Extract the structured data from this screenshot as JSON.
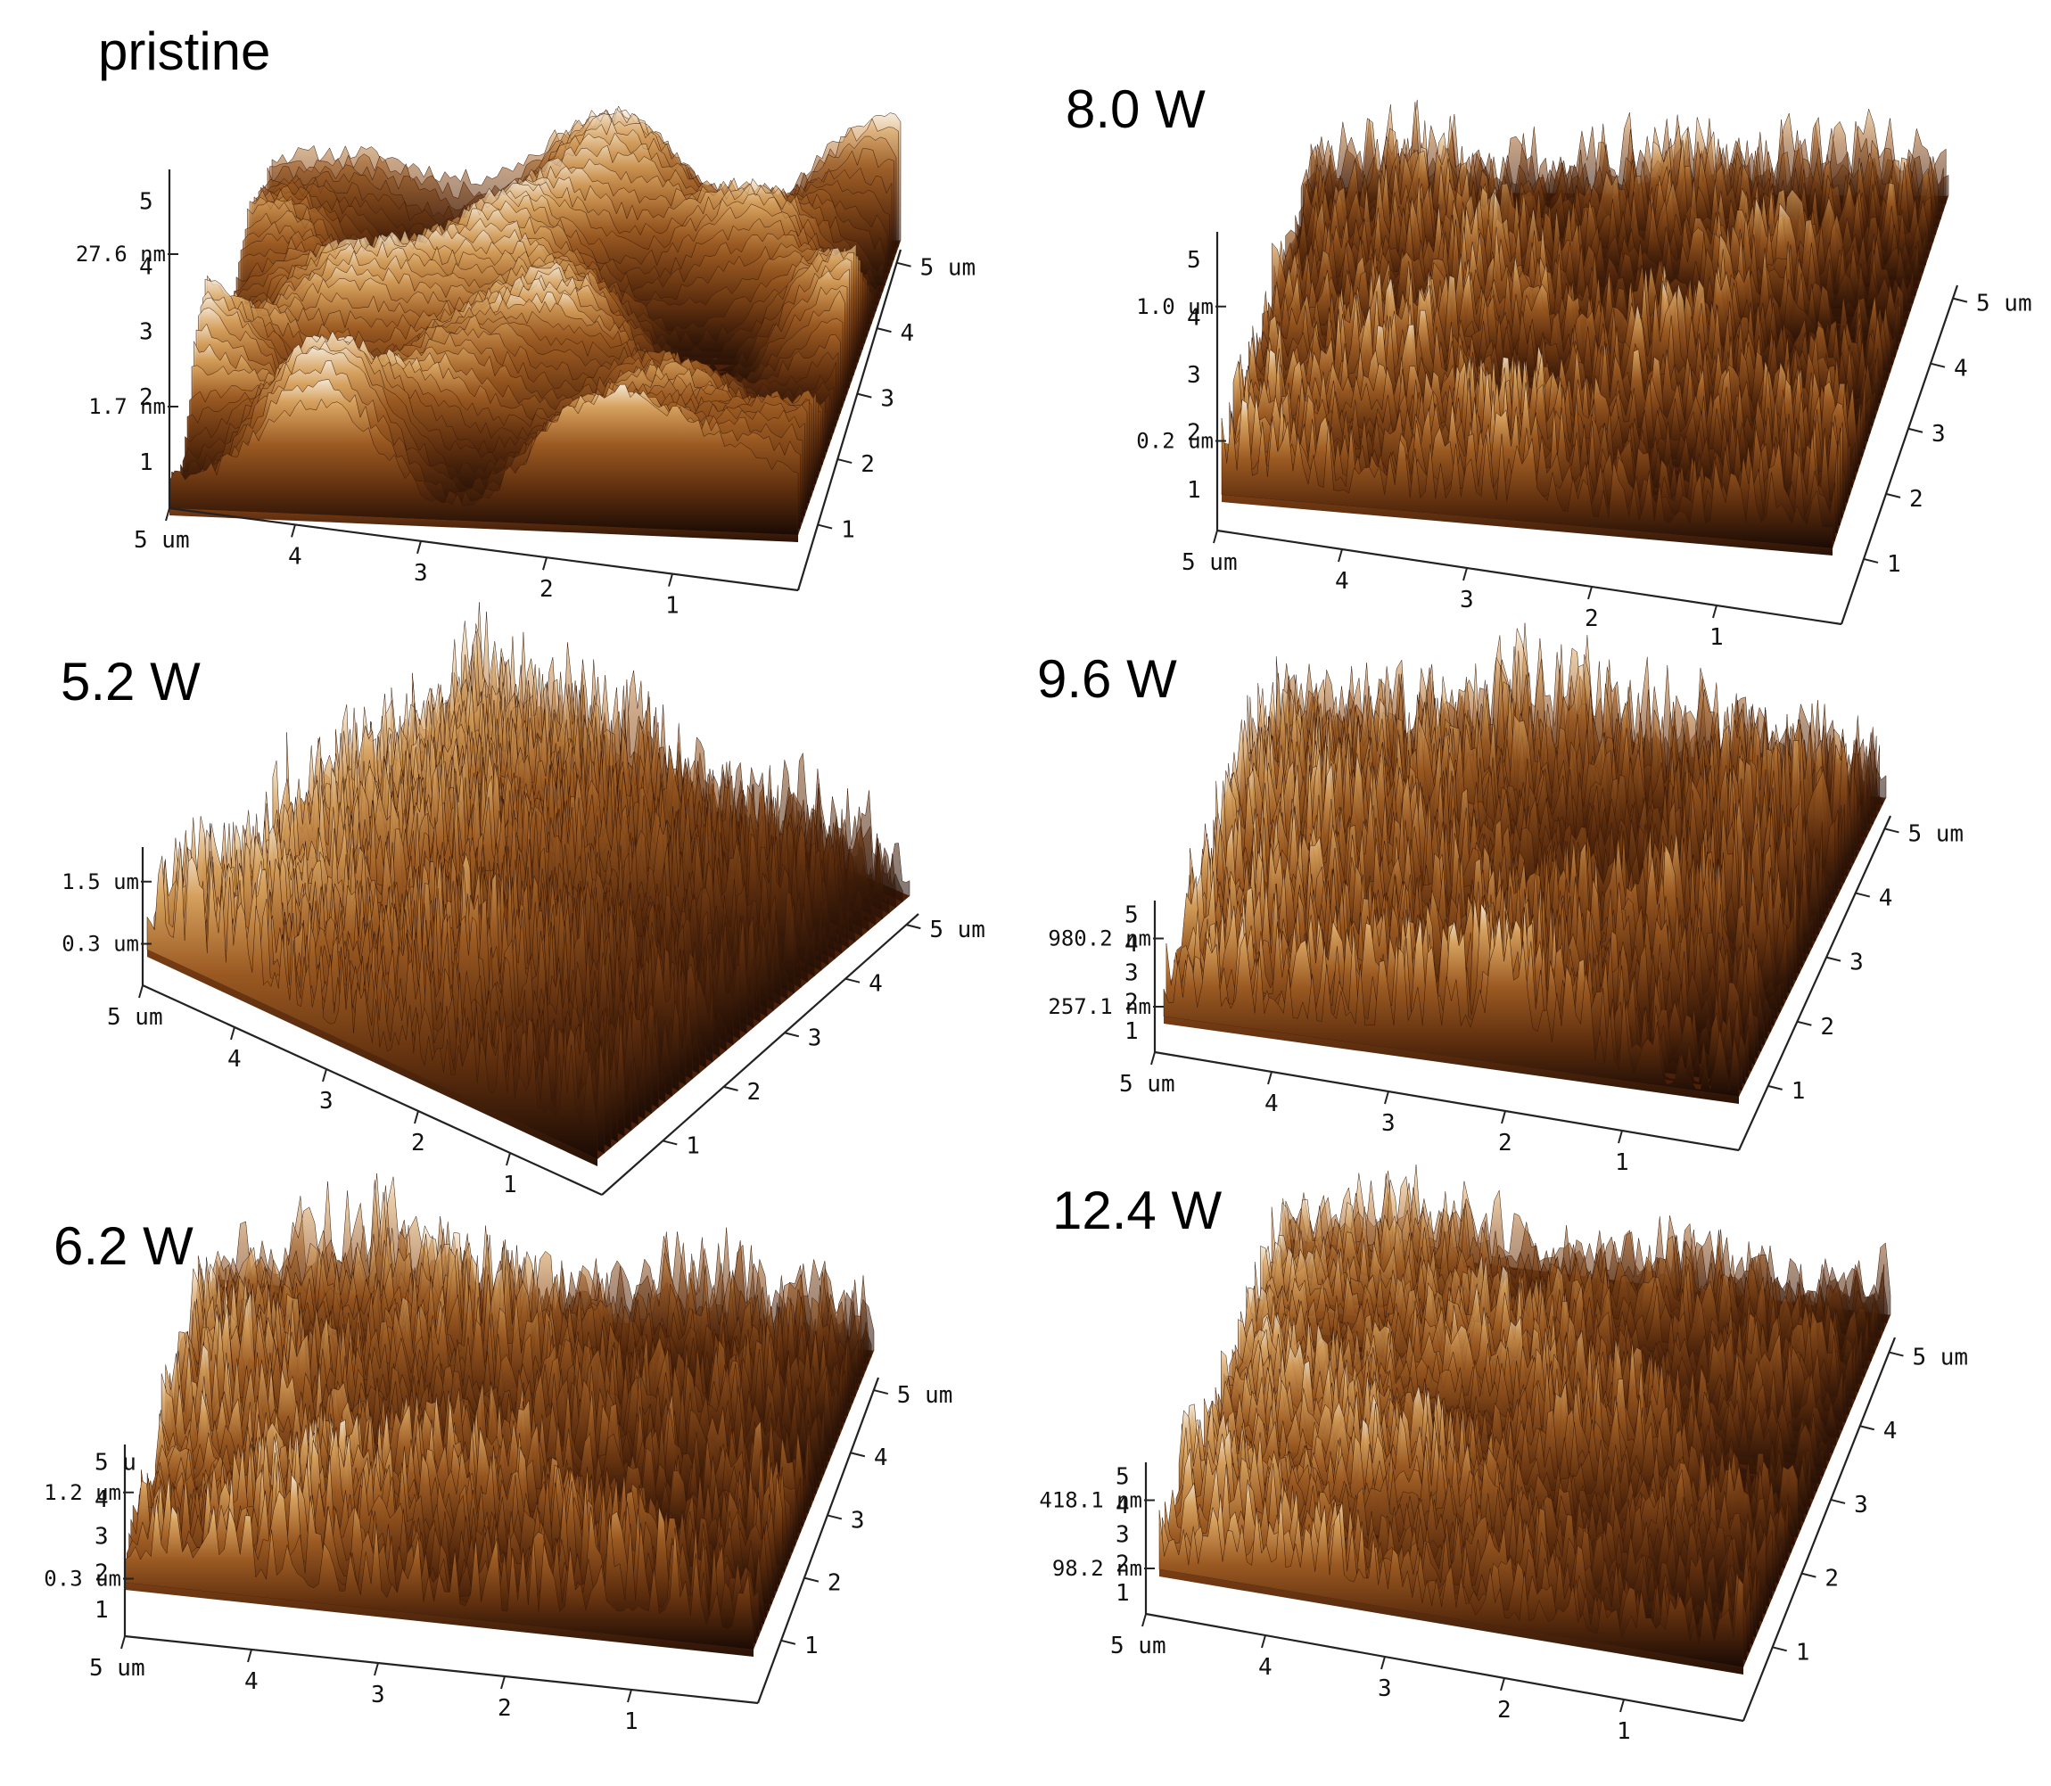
{
  "figure": {
    "panels": [
      {
        "title": "pristine",
        "z_labels": [
          "27.6 nm",
          "1.7 nm"
        ],
        "z_ticks": [
          "1",
          "2",
          "3",
          "4",
          "5"
        ],
        "x_ticks": [
          "5 um",
          "4",
          "3",
          "2",
          "1"
        ],
        "y_ticks": [
          "1",
          "2",
          "3",
          "4",
          "5 um"
        ]
      },
      {
        "title": "8.0  W",
        "z_labels": [
          "1.0 um",
          "0.2 um"
        ],
        "z_ticks": [
          "1",
          "2",
          "3",
          "4",
          "5"
        ],
        "x_ticks": [
          "5 um",
          "4",
          "3",
          "2",
          "1"
        ],
        "y_ticks": [
          "1",
          "2",
          "3",
          "4",
          "5 um"
        ]
      },
      {
        "title": "5.2 W",
        "z_labels": [
          "1.5 um",
          "0.3 um"
        ],
        "z_ticks": [],
        "x_ticks": [
          "5 um",
          "4",
          "3",
          "2",
          "1"
        ],
        "y_ticks": [
          "1",
          "2",
          "3",
          "4",
          "5 um"
        ]
      },
      {
        "title": "9.6 W",
        "z_labels": [
          "980.2 nm",
          "257.1 nm"
        ],
        "z_ticks": [
          "1",
          "2",
          "3",
          "4",
          "5"
        ],
        "x_ticks": [
          "5 um",
          "4",
          "3",
          "2",
          "1"
        ],
        "y_ticks": [
          "1",
          "2",
          "3",
          "4",
          "5 um"
        ]
      },
      {
        "title": "6.2 W",
        "z_labels": [
          "1.2 um",
          "0.3 um"
        ],
        "z_ticks": [
          "1",
          "2",
          "3",
          "4",
          "5 u"
        ],
        "x_ticks": [
          "5 um",
          "4",
          "3",
          "2",
          "1"
        ],
        "y_ticks": [
          "1",
          "2",
          "3",
          "4",
          "5 um"
        ]
      },
      {
        "title": "12.4 W",
        "z_labels": [
          "418.1 nm",
          "98.2 nm"
        ],
        "z_ticks": [
          "1",
          "2",
          "3",
          "4",
          "5"
        ],
        "x_ticks": [
          "5 um",
          "4",
          "3",
          "2",
          "1"
        ],
        "y_ticks": [
          "1",
          "2",
          "3",
          "4",
          "5 um"
        ]
      }
    ],
    "colors": {
      "surface_dark": "#1a0a04",
      "surface_mid": "#8a4a18",
      "surface_light": "#d9a25a",
      "surface_highlight": "#f4ead8",
      "background": "#ffffff",
      "axis": "#222222"
    }
  }
}
